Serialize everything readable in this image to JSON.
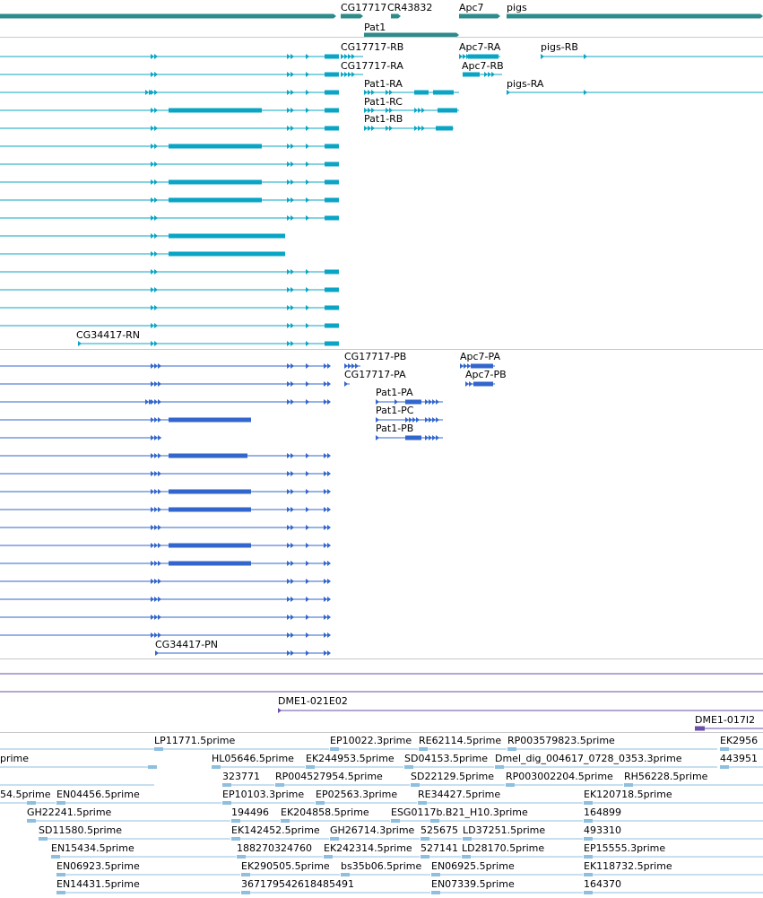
{
  "colors": {
    "gene": "#2e8b8b",
    "flybase_transcript": "#0aa5c5",
    "refseq_transcript": "#3366cc",
    "bac": "#6a4fa8",
    "est": "#8fbfdf",
    "separator": "#c8c8c8"
  },
  "gene_track": {
    "labels": [
      "CG17717",
      "CR43832",
      "Apc7",
      "pigs",
      "Pat1"
    ]
  },
  "flybase_track": {
    "labels": [
      "CG17717-RB",
      "Apc7-RA",
      "pigs-RB",
      "CG17717-RA",
      "Apc7-RB",
      "Pat1-RA",
      "pigs-RA",
      "Pat1-RC",
      "Pat1-RB",
      "CG34417-RN"
    ]
  },
  "refseq_track": {
    "labels": [
      "CG17717-PB",
      "Apc7-PA",
      "CG17717-PA",
      "Apc7-PB",
      "Pat1-PA",
      "Pat1-PC",
      "Pat1-PB",
      "CG34417-PN"
    ]
  },
  "bac_track": {
    "labels": [
      "DME1-021E02",
      "DME1-017I2"
    ]
  },
  "est_track": {
    "labels": [
      "LP11771.5prime",
      "EP10022.3prime",
      "RE62114.5prime",
      "RP003579823.5prime",
      "EK2956",
      "prime",
      "HL05646.5prime",
      "EK244953.5prime",
      "SD04153.5prime",
      "Dmel_dig_004617_0728_0353.3prime",
      "443951",
      "323771",
      "RP004527954.5prime",
      "SD22129.5prime",
      "RP003002204.5prime",
      "RH56228.5prime",
      "54.5prime",
      "EN04456.5prime",
      "EP10103.3prime",
      "EP02563.3prime",
      "RE34427.5prime",
      "EK120718.5prime",
      "GH22241.5prime",
      "194496",
      "EK204858.5prime",
      "ESG0117b.B21_H10.3prime",
      "164899",
      "SD11580.5prime",
      "EK142452.5prime",
      "GH26714.3prime",
      "525675",
      "LD37251.5prime",
      "493310",
      "EN15434.5prime",
      "188270324760",
      "EK242314.5prime",
      "527141",
      "LD28170.5prime",
      "EP15555.3prime",
      "EN06923.5prime",
      "EK290505.5prime",
      "bs35b06.5prime",
      "EN06925.5prime",
      "EK118732.5prime",
      "EN14431.5prime",
      "367179542618485491",
      "EN07339.5prime",
      "164370"
    ]
  }
}
